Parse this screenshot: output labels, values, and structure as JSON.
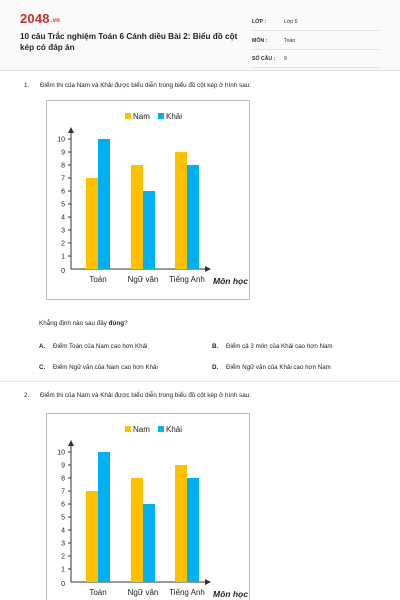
{
  "header": {
    "logo_text": "2048",
    "logo_suffix": ".vn",
    "title": "10 câu Trắc nghiệm Toán 6 Cánh diều Bài 2: Biểu đồ cột kép có đáp án",
    "meta": [
      {
        "label": "LỚP :",
        "value": "Lớp 6"
      },
      {
        "label": "MÔN :",
        "value": "Toán"
      },
      {
        "label": "SỐ CÂU :",
        "value": "9"
      }
    ]
  },
  "questions": [
    {
      "number": "1.",
      "text": "Điểm thi của Nam và Khải được biểu diễn trong biểu đồ cột kép ở hình sau:",
      "instruction_prefix": "Khẳng định nào sau đây ",
      "instruction_bold": "đúng",
      "instruction_suffix": "?",
      "options": [
        {
          "letter": "A.",
          "text": "Điểm Toán của Nam cao hơn Khải"
        },
        {
          "letter": "B.",
          "text": "Điểm cả 3 môn của Khải cao hơn Nam"
        },
        {
          "letter": "C.",
          "text": "Điểm Ngữ văn của Nam cao hơn Khải"
        },
        {
          "letter": "D.",
          "text": "Điểm Ngữ văn của Khải cao hơn Nam"
        }
      ]
    },
    {
      "number": "2.",
      "text": "Điểm thi của Nam và Khải được biểu diễn trong biểu đồ cột kép ở hình sau:"
    }
  ],
  "chart_data": [
    {
      "type": "bar",
      "categories": [
        "Toán",
        "Ngữ văn",
        "Tiếng Anh"
      ],
      "series": [
        {
          "name": "Nam",
          "values": [
            7,
            8,
            9
          ],
          "color": "#ffc000"
        },
        {
          "name": "Khải",
          "values": [
            10,
            6,
            8
          ],
          "color": "#00b0f0"
        }
      ],
      "xlabel": "Môn học",
      "ylabel": "",
      "ylim": [
        0,
        10
      ],
      "yticks": [
        1,
        2,
        3,
        4,
        5,
        6,
        7,
        8,
        9,
        10
      ],
      "legend": "top"
    },
    {
      "type": "bar",
      "categories": [
        "Toán",
        "Ngữ văn",
        "Tiếng Anh"
      ],
      "series": [
        {
          "name": "Nam",
          "values": [
            7,
            8,
            9
          ],
          "color": "#ffc000"
        },
        {
          "name": "Khải",
          "values": [
            10,
            6,
            8
          ],
          "color": "#00b0f0"
        }
      ],
      "xlabel": "Môn học",
      "ylabel": "",
      "ylim": [
        0,
        10
      ],
      "yticks": [
        1,
        2,
        3,
        4,
        5,
        6,
        7,
        8,
        9,
        10
      ],
      "legend": "top"
    }
  ]
}
